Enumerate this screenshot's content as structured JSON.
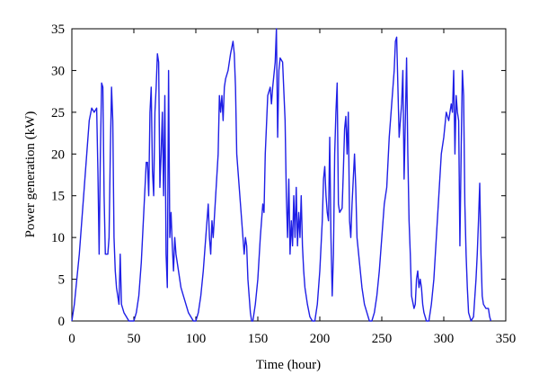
{
  "chart_data": {
    "type": "line",
    "xlabel": "Time (hour)",
    "ylabel": "Power generation (kW)",
    "xlim": [
      0,
      350
    ],
    "xticks": [
      0,
      50,
      100,
      150,
      200,
      250,
      300,
      350
    ],
    "ylim": [
      0,
      35
    ],
    "yticks": [
      0,
      5,
      10,
      15,
      20,
      25,
      30,
      35
    ],
    "series": [
      {
        "color": "#1f1fe6",
        "x": [
          0,
          2,
          4,
          6,
          8,
          10,
          12,
          14,
          16,
          18,
          20,
          21,
          22,
          23,
          24,
          25,
          26,
          27,
          29,
          30,
          31,
          32,
          33,
          34,
          35,
          36,
          37,
          38,
          39,
          40,
          42,
          44,
          46,
          48,
          50,
          52,
          54,
          56,
          58,
          60,
          61,
          62,
          63,
          64,
          65,
          66,
          67,
          68,
          69,
          70,
          71,
          72,
          73,
          74,
          75,
          76,
          77,
          78,
          79,
          80,
          81,
          82,
          83,
          84,
          86,
          88,
          90,
          92,
          94,
          96,
          98,
          100,
          102,
          104,
          106,
          108,
          110,
          111,
          112,
          113,
          114,
          116,
          118,
          119,
          120,
          121,
          122,
          123,
          124,
          126,
          128,
          130,
          131,
          132,
          133,
          134,
          136,
          138,
          139,
          140,
          141,
          142,
          143,
          144,
          145,
          146,
          148,
          150,
          152,
          154,
          155,
          156,
          158,
          160,
          161,
          162,
          164,
          165,
          166,
          167,
          168,
          170,
          172,
          173,
          174,
          175,
          176,
          177,
          178,
          179,
          180,
          181,
          182,
          183,
          184,
          185,
          186,
          187,
          188,
          190,
          192,
          194,
          196,
          198,
          200,
          202,
          203,
          204,
          205,
          206,
          207,
          208,
          209,
          210,
          211,
          212,
          213,
          214,
          215,
          216,
          218,
          219,
          220,
          221,
          222,
          223,
          224,
          225,
          226,
          227,
          228,
          229,
          230,
          232,
          234,
          236,
          238,
          240,
          242,
          244,
          246,
          248,
          250,
          252,
          254,
          256,
          258,
          260,
          261,
          262,
          263,
          264,
          265,
          266,
          267,
          268,
          269,
          270,
          271,
          272,
          273,
          274,
          276,
          277,
          278,
          279,
          280,
          281,
          282,
          283,
          284,
          286,
          288,
          290,
          292,
          294,
          296,
          298,
          300,
          302,
          304,
          306,
          307,
          308,
          309,
          310,
          311,
          312,
          313,
          314,
          315,
          316,
          317,
          318,
          319,
          320,
          322,
          324,
          326,
          327,
          328,
          329,
          330,
          331,
          332,
          334,
          336,
          337,
          338
        ],
        "values": [
          0,
          2,
          5,
          8,
          12,
          16,
          20,
          24,
          25.5,
          25,
          25.5,
          18,
          8,
          20,
          28.5,
          28,
          15,
          8,
          8,
          10,
          20,
          28,
          24,
          10,
          6,
          4,
          3,
          2,
          8,
          2,
          1,
          0.5,
          0,
          0,
          0,
          1,
          3,
          7,
          13,
          19,
          19,
          15,
          25,
          28,
          18,
          15,
          25,
          28,
          32,
          31,
          16,
          20,
          25,
          15,
          27,
          8,
          4,
          30,
          10,
          13,
          9,
          6,
          10,
          8,
          6,
          4,
          3,
          2,
          1,
          0.5,
          0,
          0,
          1,
          3,
          6,
          10,
          14,
          10,
          8,
          12,
          10,
          15,
          20,
          27,
          25,
          27,
          24,
          28,
          29,
          30,
          32,
          33.5,
          32,
          28,
          20,
          18,
          14,
          10,
          8,
          10,
          9,
          5,
          3,
          1,
          0,
          0,
          2,
          5,
          10,
          14,
          13,
          20,
          27,
          28,
          26,
          28,
          31,
          35,
          22,
          30,
          31.5,
          31,
          24,
          15,
          10,
          17,
          8,
          12,
          9,
          15,
          10,
          16,
          9,
          13,
          10,
          15,
          9,
          6,
          4,
          2,
          0.5,
          0,
          0,
          2,
          6,
          12,
          17,
          18.5,
          15,
          13,
          12,
          22,
          10,
          3,
          8,
          20,
          25,
          28.5,
          14,
          13,
          13.5,
          18,
          23,
          24.5,
          20,
          25,
          12,
          10,
          14,
          17,
          20,
          16,
          10,
          7,
          4,
          2,
          1,
          0,
          0,
          1,
          3,
          6,
          10,
          14,
          16,
          22,
          26,
          30,
          33.5,
          34,
          28,
          22,
          24,
          26,
          30,
          17,
          24,
          31.5,
          20,
          12,
          8,
          3,
          1.5,
          2,
          5,
          6,
          4,
          5,
          4,
          2,
          1,
          0,
          0,
          2,
          5,
          10,
          15,
          20,
          22,
          25,
          24,
          26,
          25,
          30,
          20,
          27,
          25,
          24,
          9,
          20,
          30,
          27,
          14,
          8,
          4,
          1,
          0,
          0.5,
          5,
          8,
          12,
          16.5,
          8,
          3,
          2,
          1.5,
          1.5,
          0.5,
          0
        ]
      }
    ]
  }
}
